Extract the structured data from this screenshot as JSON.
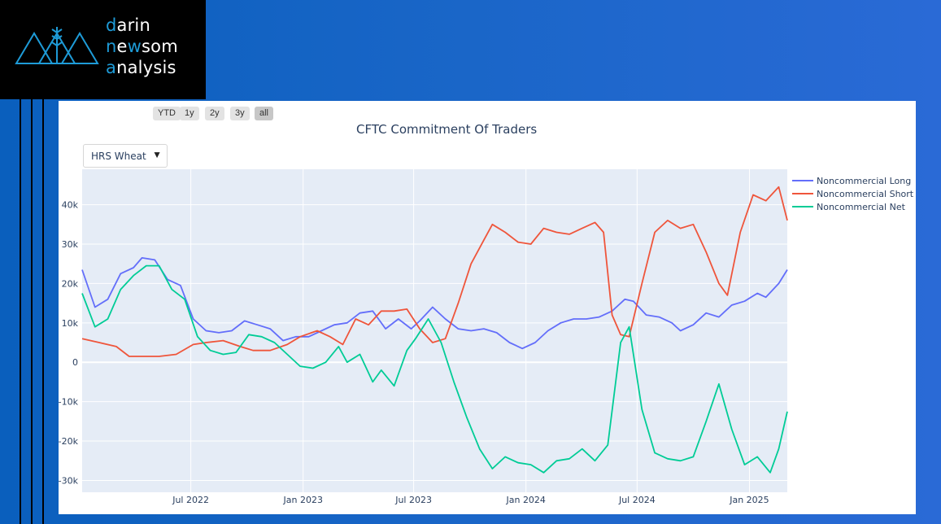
{
  "logo": {
    "line1_accent": "d",
    "line1_rest": "arin",
    "line2_a": "n",
    "line2_b": "e",
    "line2_c": "w",
    "line2_d": "som",
    "line3_accent": "a",
    "line3_rest": "nalysis"
  },
  "range_buttons": [
    "YTD",
    "1y",
    "2y",
    "3y",
    "all"
  ],
  "active_range": "all",
  "dropdown": {
    "selected": "HRS Wheat",
    "arrow": "▼"
  },
  "colors": {
    "long": "#636efa",
    "short": "#ef553b",
    "net": "#00cc96",
    "plot_bg": "#e5ecf6",
    "accent": "#1e9bd7"
  },
  "chart_data": {
    "type": "line",
    "title": "CFTC Commitment Of Traders",
    "xlabel": "",
    "ylabel": "",
    "xlim": [
      "2022-01-04",
      "2025-03-04"
    ],
    "ylim": [
      -33000,
      49000
    ],
    "y_ticks": [
      {
        "v": 40000,
        "label": "40k"
      },
      {
        "v": 30000,
        "label": "30k"
      },
      {
        "v": 20000,
        "label": "20k"
      },
      {
        "v": 10000,
        "label": "10k"
      },
      {
        "v": 0,
        "label": "0"
      },
      {
        "v": -10000,
        "label": "-10k"
      },
      {
        "v": -20000,
        "label": "-20k"
      },
      {
        "v": -30000,
        "label": "-30k"
      }
    ],
    "x_ticks": [
      {
        "date": "2022-07-01",
        "label": "Jul 2022"
      },
      {
        "date": "2023-01-01",
        "label": "Jan 2023"
      },
      {
        "date": "2023-07-01",
        "label": "Jul 2023"
      },
      {
        "date": "2024-01-01",
        "label": "Jan 2024"
      },
      {
        "date": "2024-07-01",
        "label": "Jul 2024"
      },
      {
        "date": "2025-01-01",
        "label": "Jan 2025"
      }
    ],
    "legend_position": "right",
    "series": [
      {
        "name": "Noncommercial Long",
        "color": "#636efa",
        "points": [
          [
            "2022-01-04",
            23500
          ],
          [
            "2022-01-25",
            14000
          ],
          [
            "2022-02-15",
            16000
          ],
          [
            "2022-03-08",
            22500
          ],
          [
            "2022-03-29",
            24000
          ],
          [
            "2022-04-12",
            26500
          ],
          [
            "2022-05-03",
            26000
          ],
          [
            "2022-05-24",
            21000
          ],
          [
            "2022-06-14",
            19500
          ],
          [
            "2022-07-05",
            11000
          ],
          [
            "2022-07-26",
            8000
          ],
          [
            "2022-08-16",
            7500
          ],
          [
            "2022-09-06",
            8000
          ],
          [
            "2022-09-27",
            10500
          ],
          [
            "2022-10-18",
            9500
          ],
          [
            "2022-11-08",
            8500
          ],
          [
            "2022-11-29",
            5500
          ],
          [
            "2022-12-20",
            6500
          ],
          [
            "2023-01-10",
            6500
          ],
          [
            "2023-01-31",
            8000
          ],
          [
            "2023-02-21",
            9500
          ],
          [
            "2023-03-14",
            10000
          ],
          [
            "2023-04-04",
            12500
          ],
          [
            "2023-04-25",
            13000
          ],
          [
            "2023-05-16",
            8500
          ],
          [
            "2023-06-06",
            11000
          ],
          [
            "2023-06-27",
            8500
          ],
          [
            "2023-07-11",
            10500
          ],
          [
            "2023-08-01",
            14000
          ],
          [
            "2023-08-22",
            11000
          ],
          [
            "2023-09-12",
            8500
          ],
          [
            "2023-10-03",
            8000
          ],
          [
            "2023-10-24",
            8500
          ],
          [
            "2023-11-14",
            7500
          ],
          [
            "2023-12-05",
            5000
          ],
          [
            "2023-12-26",
            3500
          ],
          [
            "2024-01-16",
            5000
          ],
          [
            "2024-02-06",
            8000
          ],
          [
            "2024-02-27",
            10000
          ],
          [
            "2024-03-19",
            11000
          ],
          [
            "2024-04-09",
            11000
          ],
          [
            "2024-04-30",
            11500
          ],
          [
            "2024-05-21",
            13000
          ],
          [
            "2024-06-11",
            16000
          ],
          [
            "2024-06-25",
            15500
          ],
          [
            "2024-07-16",
            12000
          ],
          [
            "2024-08-06",
            11500
          ],
          [
            "2024-08-27",
            10000
          ],
          [
            "2024-09-10",
            8000
          ],
          [
            "2024-10-01",
            9500
          ],
          [
            "2024-10-22",
            12500
          ],
          [
            "2024-11-12",
            11500
          ],
          [
            "2024-12-03",
            14500
          ],
          [
            "2024-12-24",
            15500
          ],
          [
            "2025-01-14",
            17500
          ],
          [
            "2025-01-28",
            16500
          ],
          [
            "2025-02-18",
            20000
          ],
          [
            "2025-03-04",
            23500
          ]
        ]
      },
      {
        "name": "Noncommercial Short",
        "color": "#ef553b",
        "points": [
          [
            "2022-01-04",
            6000
          ],
          [
            "2022-02-01",
            5000
          ],
          [
            "2022-03-01",
            4000
          ],
          [
            "2022-03-22",
            1500
          ],
          [
            "2022-04-12",
            1500
          ],
          [
            "2022-05-10",
            1500
          ],
          [
            "2022-06-07",
            2000
          ],
          [
            "2022-07-05",
            4500
          ],
          [
            "2022-07-26",
            5000
          ],
          [
            "2022-08-23",
            5500
          ],
          [
            "2022-09-20",
            4000
          ],
          [
            "2022-10-11",
            3000
          ],
          [
            "2022-11-08",
            3000
          ],
          [
            "2022-12-06",
            4500
          ],
          [
            "2022-12-27",
            6500
          ],
          [
            "2023-01-24",
            8000
          ],
          [
            "2023-02-14",
            6500
          ],
          [
            "2023-03-07",
            4500
          ],
          [
            "2023-03-28",
            11000
          ],
          [
            "2023-04-18",
            9500
          ],
          [
            "2023-05-09",
            13000
          ],
          [
            "2023-05-30",
            13000
          ],
          [
            "2023-06-20",
            13500
          ],
          [
            "2023-07-11",
            8500
          ],
          [
            "2023-08-01",
            5000
          ],
          [
            "2023-08-22",
            6000
          ],
          [
            "2023-09-12",
            15000
          ],
          [
            "2023-10-03",
            25000
          ],
          [
            "2023-10-24",
            31000
          ],
          [
            "2023-11-07",
            35000
          ],
          [
            "2023-11-28",
            33000
          ],
          [
            "2023-12-19",
            30500
          ],
          [
            "2024-01-09",
            30000
          ],
          [
            "2024-01-30",
            34000
          ],
          [
            "2024-02-20",
            33000
          ],
          [
            "2024-03-12",
            32500
          ],
          [
            "2024-04-02",
            34000
          ],
          [
            "2024-04-23",
            35500
          ],
          [
            "2024-05-07",
            33000
          ],
          [
            "2024-05-21",
            12000
          ],
          [
            "2024-06-04",
            7000
          ],
          [
            "2024-06-18",
            6500
          ],
          [
            "2024-07-09",
            20000
          ],
          [
            "2024-07-30",
            33000
          ],
          [
            "2024-08-20",
            36000
          ],
          [
            "2024-09-10",
            34000
          ],
          [
            "2024-10-01",
            35000
          ],
          [
            "2024-10-22",
            28000
          ],
          [
            "2024-11-12",
            20000
          ],
          [
            "2024-11-26",
            17000
          ],
          [
            "2024-12-17",
            33000
          ],
          [
            "2025-01-07",
            42500
          ],
          [
            "2025-01-28",
            41000
          ],
          [
            "2025-02-18",
            44500
          ],
          [
            "2025-03-04",
            36000
          ]
        ]
      },
      {
        "name": "Noncommercial Net",
        "color": "#00cc96",
        "points": [
          [
            "2022-01-04",
            17500
          ],
          [
            "2022-01-25",
            9000
          ],
          [
            "2022-02-15",
            11000
          ],
          [
            "2022-03-08",
            18500
          ],
          [
            "2022-03-29",
            22000
          ],
          [
            "2022-04-19",
            24500
          ],
          [
            "2022-05-10",
            24500
          ],
          [
            "2022-05-31",
            18500
          ],
          [
            "2022-06-21",
            16000
          ],
          [
            "2022-07-12",
            6500
          ],
          [
            "2022-08-02",
            3000
          ],
          [
            "2022-08-23",
            2000
          ],
          [
            "2022-09-13",
            2500
          ],
          [
            "2022-10-04",
            7000
          ],
          [
            "2022-10-25",
            6500
          ],
          [
            "2022-11-15",
            5000
          ],
          [
            "2022-12-06",
            2000
          ],
          [
            "2022-12-27",
            -1000
          ],
          [
            "2023-01-17",
            -1500
          ],
          [
            "2023-02-07",
            0
          ],
          [
            "2023-02-28",
            4000
          ],
          [
            "2023-03-14",
            0
          ],
          [
            "2023-04-04",
            2000
          ],
          [
            "2023-04-25",
            -5000
          ],
          [
            "2023-05-09",
            -2000
          ],
          [
            "2023-05-30",
            -6000
          ],
          [
            "2023-06-20",
            3000
          ],
          [
            "2023-07-04",
            6000
          ],
          [
            "2023-07-25",
            11000
          ],
          [
            "2023-08-15",
            5000
          ],
          [
            "2023-09-05",
            -5000
          ],
          [
            "2023-09-26",
            -14000
          ],
          [
            "2023-10-17",
            -22000
          ],
          [
            "2023-11-07",
            -27000
          ],
          [
            "2023-11-28",
            -24000
          ],
          [
            "2023-12-19",
            -25500
          ],
          [
            "2024-01-09",
            -26000
          ],
          [
            "2024-01-30",
            -28000
          ],
          [
            "2024-02-20",
            -25000
          ],
          [
            "2024-03-12",
            -24500
          ],
          [
            "2024-04-02",
            -22000
          ],
          [
            "2024-04-23",
            -25000
          ],
          [
            "2024-05-14",
            -21000
          ],
          [
            "2024-06-04",
            5000
          ],
          [
            "2024-06-18",
            9000
          ],
          [
            "2024-07-09",
            -12000
          ],
          [
            "2024-07-30",
            -23000
          ],
          [
            "2024-08-20",
            -24500
          ],
          [
            "2024-09-10",
            -25000
          ],
          [
            "2024-10-01",
            -24000
          ],
          [
            "2024-10-22",
            -15000
          ],
          [
            "2024-11-12",
            -5500
          ],
          [
            "2024-12-03",
            -17000
          ],
          [
            "2024-12-24",
            -26000
          ],
          [
            "2025-01-14",
            -24000
          ],
          [
            "2025-02-04",
            -28000
          ],
          [
            "2025-02-18",
            -22000
          ],
          [
            "2025-03-04",
            -12500
          ]
        ]
      }
    ]
  }
}
